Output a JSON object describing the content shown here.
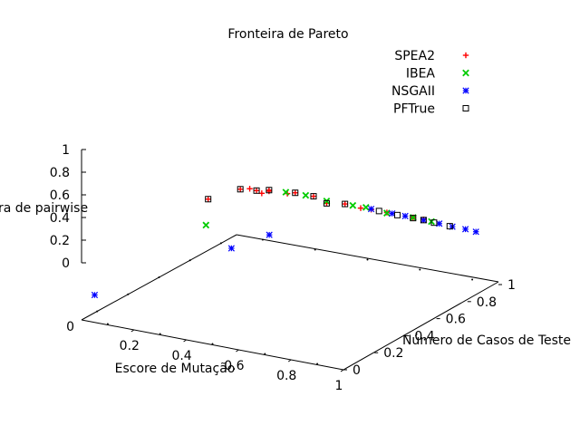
{
  "chart_data": {
    "type": "scatter",
    "title": "Fronteira de Pareto",
    "xlabel": "Escore de Mutação",
    "ylabel": "Número de Casos de Teste",
    "zlabel": "Escore de pairwise",
    "label_z_visible": "ra de pairwise",
    "xlim": [
      0,
      1
    ],
    "ylim": [
      0,
      1
    ],
    "zlim": [
      0,
      1
    ],
    "x_tick_labels": [
      "0.2",
      "0.4",
      "0.6",
      "0.8",
      "1"
    ],
    "y_tick_labels": [
      "0",
      "0.2",
      "0.4",
      "0.6",
      "0.8",
      "1"
    ],
    "z_tick_labels": [
      "0",
      "0.2",
      "0.4",
      "0.6",
      "0.8",
      "1"
    ],
    "origin_label": "0",
    "legend_position": "top-right",
    "series": [
      {
        "name": "SPEA2",
        "marker": "plus",
        "color": "#ff0000",
        "points": [
          {
            "x": 0.01,
            "y": 0.8,
            "z": 0.93
          },
          {
            "x": 0.05,
            "y": 0.94,
            "z": 0.93
          },
          {
            "x": 0.08,
            "y": 0.95,
            "z": 0.95
          },
          {
            "x": 0.1,
            "y": 0.96,
            "z": 0.92
          },
          {
            "x": 0.12,
            "y": 0.96,
            "z": 0.89
          },
          {
            "x": 0.13,
            "y": 0.99,
            "z": 0.91
          },
          {
            "x": 0.13,
            "y": 0.99,
            "z": 0.89
          },
          {
            "x": 0.2,
            "y": 0.99,
            "z": 0.91
          },
          {
            "x": 0.23,
            "y": 0.99,
            "z": 0.95
          },
          {
            "x": 0.3,
            "y": 0.99,
            "z": 0.95
          },
          {
            "x": 0.35,
            "y": 0.99,
            "z": 0.87
          },
          {
            "x": 0.42,
            "y": 0.99,
            "z": 0.92
          },
          {
            "x": 0.48,
            "y": 0.99,
            "z": 0.9
          },
          {
            "x": 0.52,
            "y": 0.99,
            "z": 0.91
          },
          {
            "x": 0.58,
            "y": 0.99,
            "z": 0.91
          },
          {
            "x": 0.68,
            "y": 0.99,
            "z": 0.91
          },
          {
            "x": 0.72,
            "y": 0.99,
            "z": 0.91
          }
        ]
      },
      {
        "name": "IBEA",
        "marker": "cross",
        "color": "#00cc00",
        "points": [
          {
            "x": 0.12,
            "y": 0.6,
            "z": 0.87
          },
          {
            "x": 0.2,
            "y": 0.98,
            "z": 0.95
          },
          {
            "x": 0.27,
            "y": 0.99,
            "z": 0.94
          },
          {
            "x": 0.35,
            "y": 0.99,
            "z": 0.91
          },
          {
            "x": 0.45,
            "y": 0.99,
            "z": 0.92
          },
          {
            "x": 0.5,
            "y": 0.99,
            "z": 0.93
          },
          {
            "x": 0.58,
            "y": 0.99,
            "z": 0.9
          },
          {
            "x": 0.68,
            "y": 0.99,
            "z": 0.91
          },
          {
            "x": 0.75,
            "y": 0.99,
            "z": 0.9
          }
        ]
      },
      {
        "name": "NSGAII",
        "marker": "star",
        "color": "#0000ff",
        "points": [
          {
            "x": 0.05,
            "y": 0.0,
            "z": 0.48
          },
          {
            "x": 0.3,
            "y": 0.46,
            "z": 0.83
          },
          {
            "x": 0.35,
            "y": 0.62,
            "z": 0.87
          },
          {
            "x": 0.52,
            "y": 0.99,
            "z": 0.92
          },
          {
            "x": 0.6,
            "y": 0.99,
            "z": 0.91
          },
          {
            "x": 0.65,
            "y": 0.99,
            "z": 0.91
          },
          {
            "x": 0.72,
            "y": 0.99,
            "z": 0.9
          },
          {
            "x": 0.78,
            "y": 0.99,
            "z": 0.89
          },
          {
            "x": 0.83,
            "y": 0.99,
            "z": 0.88
          },
          {
            "x": 0.88,
            "y": 0.99,
            "z": 0.88
          },
          {
            "x": 0.92,
            "y": 0.99,
            "z": 0.87
          }
        ]
      },
      {
        "name": "PFTrue",
        "marker": "square",
        "color": "#000000",
        "points": [
          {
            "x": 0.01,
            "y": 0.8,
            "z": 0.93
          },
          {
            "x": 0.05,
            "y": 0.94,
            "z": 0.93
          },
          {
            "x": 0.1,
            "y": 0.96,
            "z": 0.92
          },
          {
            "x": 0.13,
            "y": 0.99,
            "z": 0.91
          },
          {
            "x": 0.23,
            "y": 0.99,
            "z": 0.95
          },
          {
            "x": 0.3,
            "y": 0.99,
            "z": 0.95
          },
          {
            "x": 0.35,
            "y": 0.99,
            "z": 0.87
          },
          {
            "x": 0.42,
            "y": 0.99,
            "z": 0.92
          },
          {
            "x": 0.55,
            "y": 0.99,
            "z": 0.91
          },
          {
            "x": 0.62,
            "y": 0.99,
            "z": 0.9
          },
          {
            "x": 0.68,
            "y": 0.99,
            "z": 0.9
          },
          {
            "x": 0.72,
            "y": 0.99,
            "z": 0.9
          },
          {
            "x": 0.76,
            "y": 0.99,
            "z": 0.89
          },
          {
            "x": 0.82,
            "y": 0.99,
            "z": 0.88
          }
        ]
      }
    ]
  }
}
